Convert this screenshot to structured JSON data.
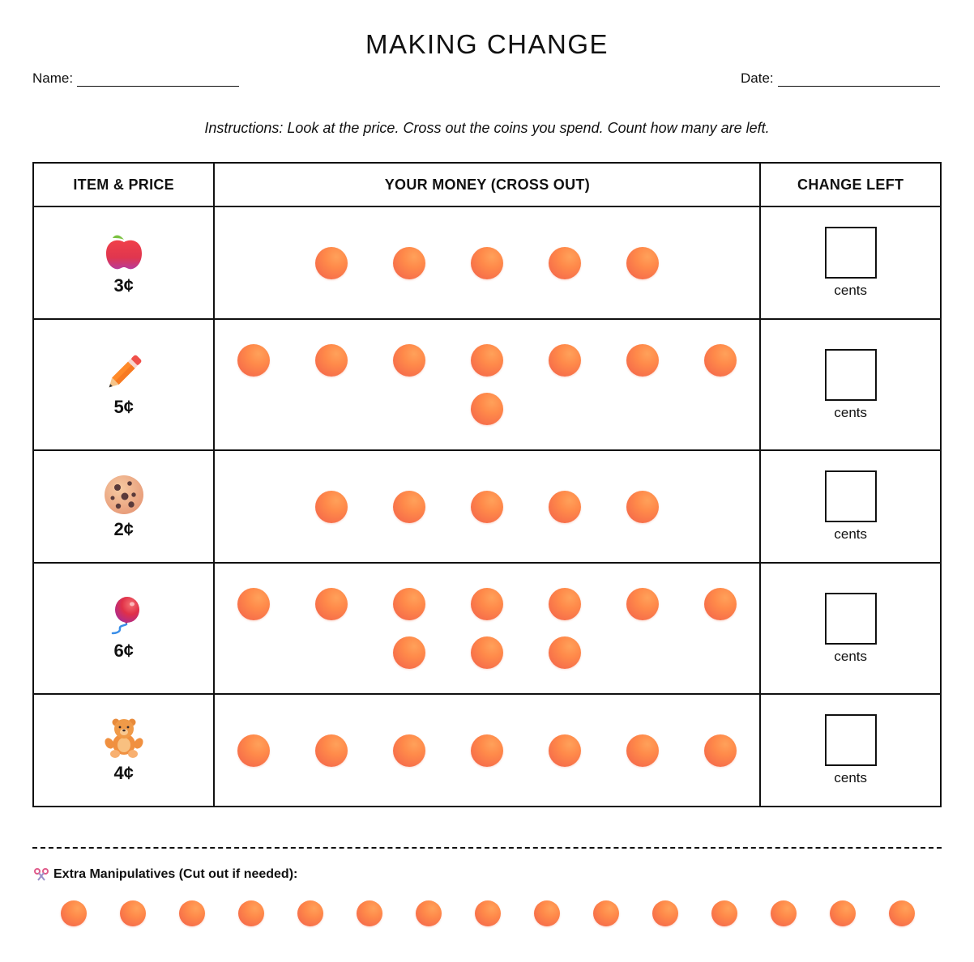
{
  "header": {
    "title": "MAKING CHANGE",
    "name_label": "Name:",
    "date_label": "Date:",
    "name_value": "",
    "date_value": ""
  },
  "instructions": "Instructions: Look at the price. Cross out the coins you spend. Count how many are left.",
  "table": {
    "columns": [
      "ITEM & PRICE",
      "YOUR MONEY (CROSS OUT)",
      "CHANGE LEFT"
    ],
    "rows": [
      {
        "item": "apple-icon",
        "price": "3¢",
        "coin_count": 5,
        "answer_label": "cents",
        "answer_value": ""
      },
      {
        "item": "pencil-icon",
        "price": "5¢",
        "coin_count": 8,
        "answer_label": "cents",
        "answer_value": ""
      },
      {
        "item": "cookie-icon",
        "price": "2¢",
        "coin_count": 5,
        "answer_label": "cents",
        "answer_value": ""
      },
      {
        "item": "balloon-icon",
        "price": "6¢",
        "coin_count": 10,
        "answer_label": "cents",
        "answer_value": ""
      },
      {
        "item": "teddy-bear-icon",
        "price": "4¢",
        "coin_count": 7,
        "answer_label": "cents",
        "answer_value": ""
      }
    ]
  },
  "extra": {
    "icon": "scissors-icon",
    "title": "Extra Manipulatives (Cut out if needed):",
    "coin_count": 15
  },
  "colors": {
    "coin": "#f87c4c",
    "border": "#111111"
  }
}
